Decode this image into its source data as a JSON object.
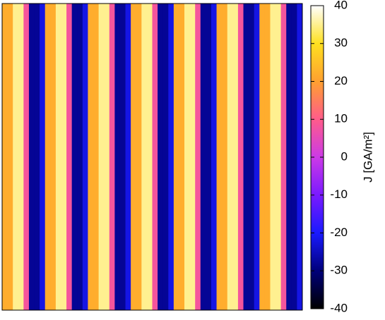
{
  "chart_data": {
    "type": "heatmap",
    "colorbar_label": "J [GA/m²]",
    "zlim": [
      -40,
      40
    ],
    "zticks": [
      -40,
      -30,
      -20,
      -10,
      0,
      10,
      20,
      30,
      40
    ],
    "colormap": [
      "#000000",
      "#00007a",
      "#1a1aff",
      "#7a1aff",
      "#cc3ae6",
      "#ff5c8a",
      "#ffa030",
      "#ffe020",
      "#ffffff"
    ],
    "z": [
      [
        22,
        22,
        35,
        35,
        8,
        -28,
        -28,
        -22,
        22,
        22,
        35,
        35,
        8,
        -28,
        -28,
        -22,
        22,
        22,
        35,
        35,
        8,
        -28,
        -28,
        -22,
        22,
        22,
        35,
        35,
        8,
        -28,
        -28,
        -22,
        22,
        22,
        35,
        35,
        8,
        -28,
        -28,
        -22,
        22,
        22,
        35,
        35,
        8,
        -28,
        -28,
        -22,
        22,
        22,
        35,
        35,
        8,
        -28,
        -28,
        -22
      ],
      [
        22,
        22,
        35,
        35,
        8,
        -28,
        -28,
        -22,
        22,
        22,
        35,
        35,
        8,
        -28,
        -28,
        -22,
        22,
        22,
        35,
        35,
        8,
        -28,
        -28,
        -22,
        22,
        22,
        35,
        35,
        8,
        -28,
        -28,
        -22,
        22,
        22,
        35,
        35,
        8,
        -28,
        -28,
        -22,
        22,
        22,
        35,
        35,
        8,
        -28,
        -28,
        -22,
        22,
        22,
        35,
        35,
        8,
        -28,
        -28,
        -22
      ]
    ]
  }
}
